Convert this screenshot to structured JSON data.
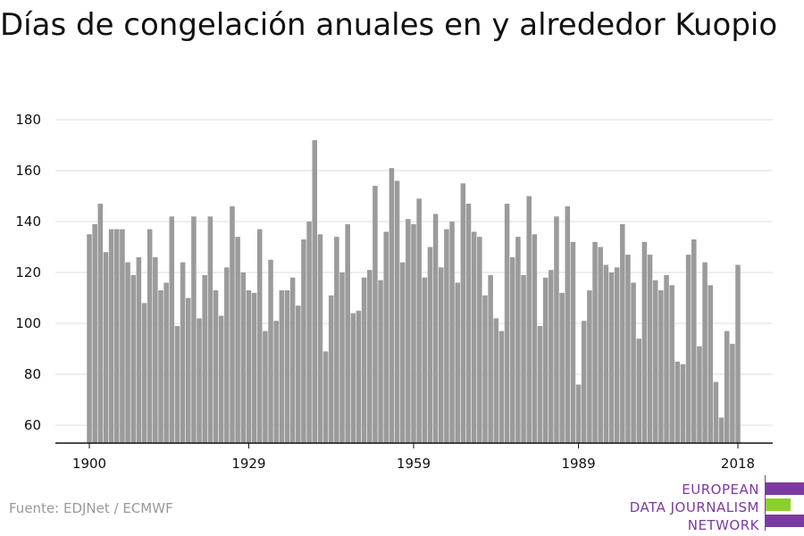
{
  "title": "Días de congelación anuales en y alrededor Kuopio",
  "source": "Fuente: EDJNet / ECMWF",
  "logo": {
    "lines": [
      "EUROPEAN",
      "DATA JOURNALISM",
      "NETWORK"
    ],
    "colors": {
      "purple": "#7b3aa0",
      "green": "#8bd12b"
    }
  },
  "colors": {
    "bar": "#9b9b9b",
    "grid": "#dddddd",
    "axis": "#111111",
    "text": "#111111"
  },
  "chart_data": {
    "type": "bar",
    "title": "Días de congelación anuales en y alrededor Kuopio",
    "xlabel": "",
    "ylabel": "",
    "ylim": [
      53,
      180
    ],
    "xlim": [
      1899,
      2019
    ],
    "grid": true,
    "yticks": [
      60,
      80,
      100,
      120,
      140,
      160,
      180
    ],
    "xticks": [
      1900,
      1929,
      1959,
      1989,
      2018
    ],
    "x": [
      1900,
      1901,
      1902,
      1903,
      1904,
      1905,
      1906,
      1907,
      1908,
      1909,
      1910,
      1911,
      1912,
      1913,
      1914,
      1915,
      1916,
      1917,
      1918,
      1919,
      1920,
      1921,
      1922,
      1923,
      1924,
      1925,
      1926,
      1927,
      1928,
      1929,
      1930,
      1931,
      1932,
      1933,
      1934,
      1935,
      1936,
      1937,
      1938,
      1939,
      1940,
      1941,
      1942,
      1943,
      1944,
      1945,
      1946,
      1947,
      1948,
      1949,
      1950,
      1951,
      1952,
      1953,
      1954,
      1955,
      1956,
      1957,
      1958,
      1959,
      1960,
      1961,
      1962,
      1963,
      1964,
      1965,
      1966,
      1967,
      1968,
      1969,
      1970,
      1971,
      1972,
      1973,
      1974,
      1975,
      1976,
      1977,
      1978,
      1979,
      1980,
      1981,
      1982,
      1983,
      1984,
      1985,
      1986,
      1987,
      1988,
      1989,
      1990,
      1991,
      1992,
      1993,
      1994,
      1995,
      1996,
      1997,
      1998,
      1999,
      2000,
      2001,
      2002,
      2003,
      2004,
      2005,
      2006,
      2007,
      2008,
      2009,
      2010,
      2011,
      2012,
      2013,
      2014,
      2015,
      2016,
      2017,
      2018
    ],
    "values": [
      135,
      139,
      147,
      128,
      137,
      137,
      137,
      124,
      119,
      126,
      108,
      137,
      126,
      113,
      116,
      142,
      99,
      124,
      110,
      142,
      102,
      119,
      142,
      113,
      103,
      122,
      146,
      134,
      120,
      113,
      112,
      137,
      97,
      125,
      101,
      113,
      113,
      118,
      107,
      133,
      140,
      172,
      135,
      89,
      111,
      134,
      120,
      139,
      104,
      105,
      118,
      121,
      154,
      117,
      136,
      161,
      156,
      124,
      141,
      139,
      149,
      118,
      130,
      143,
      122,
      137,
      140,
      116,
      155,
      147,
      136,
      134,
      111,
      119,
      102,
      97,
      147,
      126,
      134,
      119,
      150,
      135,
      99,
      118,
      121,
      142,
      112,
      146,
      132,
      76,
      101,
      113,
      132,
      130,
      123,
      120,
      122,
      139,
      127,
      116,
      94,
      132,
      127,
      117,
      113,
      119,
      115,
      85,
      84,
      127,
      133,
      91,
      124,
      115,
      77,
      63,
      97,
      92,
      123
    ]
  }
}
